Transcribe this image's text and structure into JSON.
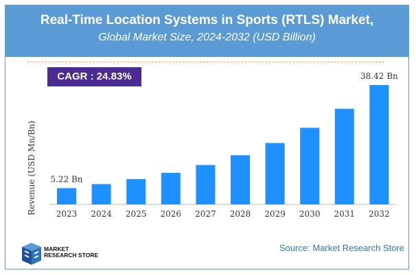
{
  "header": {
    "title": "Real-Time Location Systems in Sports (RTLS) Market,",
    "subtitle": "Global Market Size, 2024-2032 (USD Billion)"
  },
  "cagr": "CAGR :  24.83%",
  "source": "Source: Market Research Store",
  "logo": {
    "line1": "MARKET",
    "line2": "RESEARCH STORE"
  },
  "colors": {
    "bar": "#1e90ff",
    "header": "#5b9bd5",
    "cagr": "#4b2a91"
  },
  "chart_data": {
    "type": "bar",
    "title": "Real-Time Location Systems in Sports (RTLS) Market, Global Market Size, 2024-2032 (USD Billion)",
    "xlabel": "",
    "ylabel": "Revenue (USD Mn/Bn)",
    "categories": [
      "2023",
      "2024",
      "2025",
      "2026",
      "2027",
      "2028",
      "2029",
      "2030",
      "2031",
      "2032"
    ],
    "values": [
      5.22,
      6.52,
      8.13,
      10.15,
      12.67,
      15.82,
      19.75,
      24.65,
      30.77,
      38.42
    ],
    "data_labels": {
      "0": "5.22 Bn",
      "9": "38.42 Bn"
    },
    "ylim": [
      0,
      40
    ],
    "grid": false
  }
}
